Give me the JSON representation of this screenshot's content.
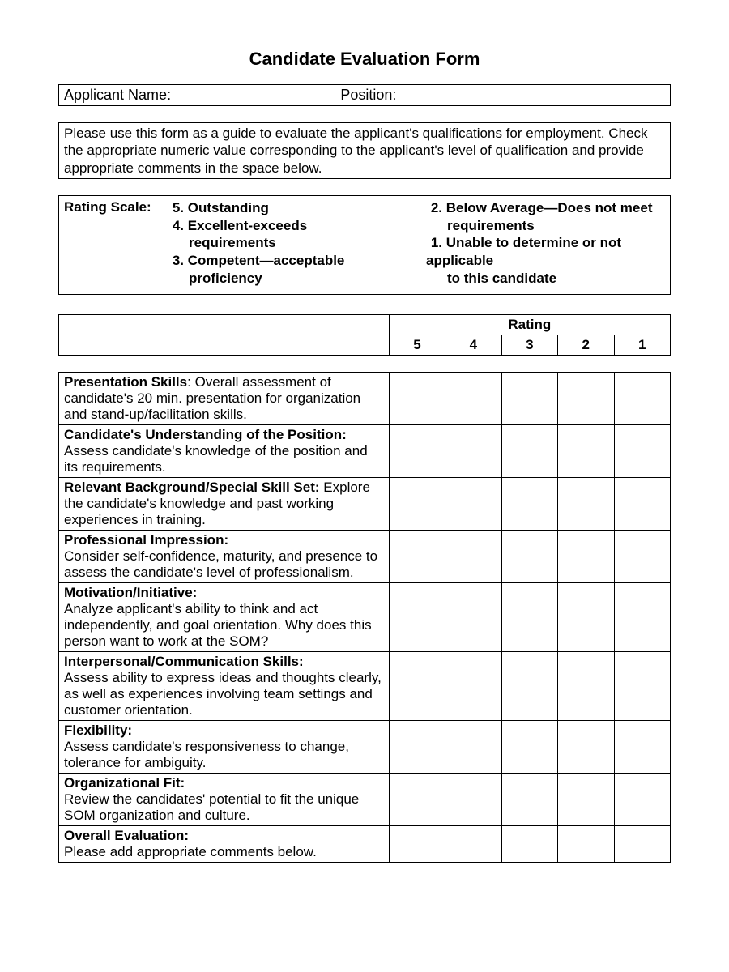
{
  "title": "Candidate Evaluation Form",
  "applicant": {
    "name_label": "Applicant Name:",
    "position_label": "Position:"
  },
  "instructions": "Please use this form as a guide to evaluate the applicant's qualifications for employment.  Check the appropriate numeric value corresponding to the applicant's level of qualification and provide appropriate comments in the space below.",
  "rating_scale": {
    "label": "Rating Scale:",
    "left": [
      {
        "num": "5.",
        "text": "Outstanding",
        "cont": ""
      },
      {
        "num": "4.",
        "text": "Excellent-exceeds",
        "cont": "requirements"
      },
      {
        "num": "3.",
        "text": "Competent—acceptable",
        "cont": "proficiency"
      }
    ],
    "right": [
      {
        "num": "2.",
        "text": "Below Average—Does not meet",
        "cont": "requirements"
      },
      {
        "num": "1.",
        "text": "Unable to determine or not applicable",
        "cont": "to this candidate"
      }
    ]
  },
  "table_header": {
    "rating_label": "Rating",
    "columns": [
      "5",
      "4",
      "3",
      "2",
      "1"
    ]
  },
  "criteria": [
    {
      "title": "Presentation Skills",
      "sep": ": ",
      "desc": "Overall assessment of candidate's 20 min. presentation for organization and stand-up/facilitation skills."
    },
    {
      "title": "Candidate's Understanding of the Position:",
      "sep": "",
      "desc": "Assess candidate's knowledge of the position and its requirements."
    },
    {
      "title": "Relevant Background/Special Skill Set:",
      "sep": " ",
      "desc": "Explore the candidate's knowledge and past working experiences in training."
    },
    {
      "title": "Professional Impression:",
      "sep": "",
      "desc": "Consider self-confidence, maturity, and presence to assess the candidate's level of professionalism."
    },
    {
      "title": "Motivation/Initiative:",
      "sep": "",
      "desc": "Analyze applicant's ability to think and act independently, and goal orientation.  Why does this person want to work at the SOM?"
    },
    {
      "title": "Interpersonal/Communication Skills:",
      "sep": "",
      "desc": "Assess ability to express ideas and thoughts clearly, as well as experiences involving team settings and customer orientation."
    },
    {
      "title": "Flexibility:",
      "sep": "",
      "desc": "Assess candidate's responsiveness to change, tolerance for ambiguity."
    },
    {
      "title": "Organizational Fit:",
      "sep": "",
      "desc": "Review the candidates' potential to fit the unique SOM organization and culture."
    },
    {
      "title": "Overall Evaluation:",
      "sep": "",
      "desc": "Please add appropriate comments below."
    }
  ]
}
